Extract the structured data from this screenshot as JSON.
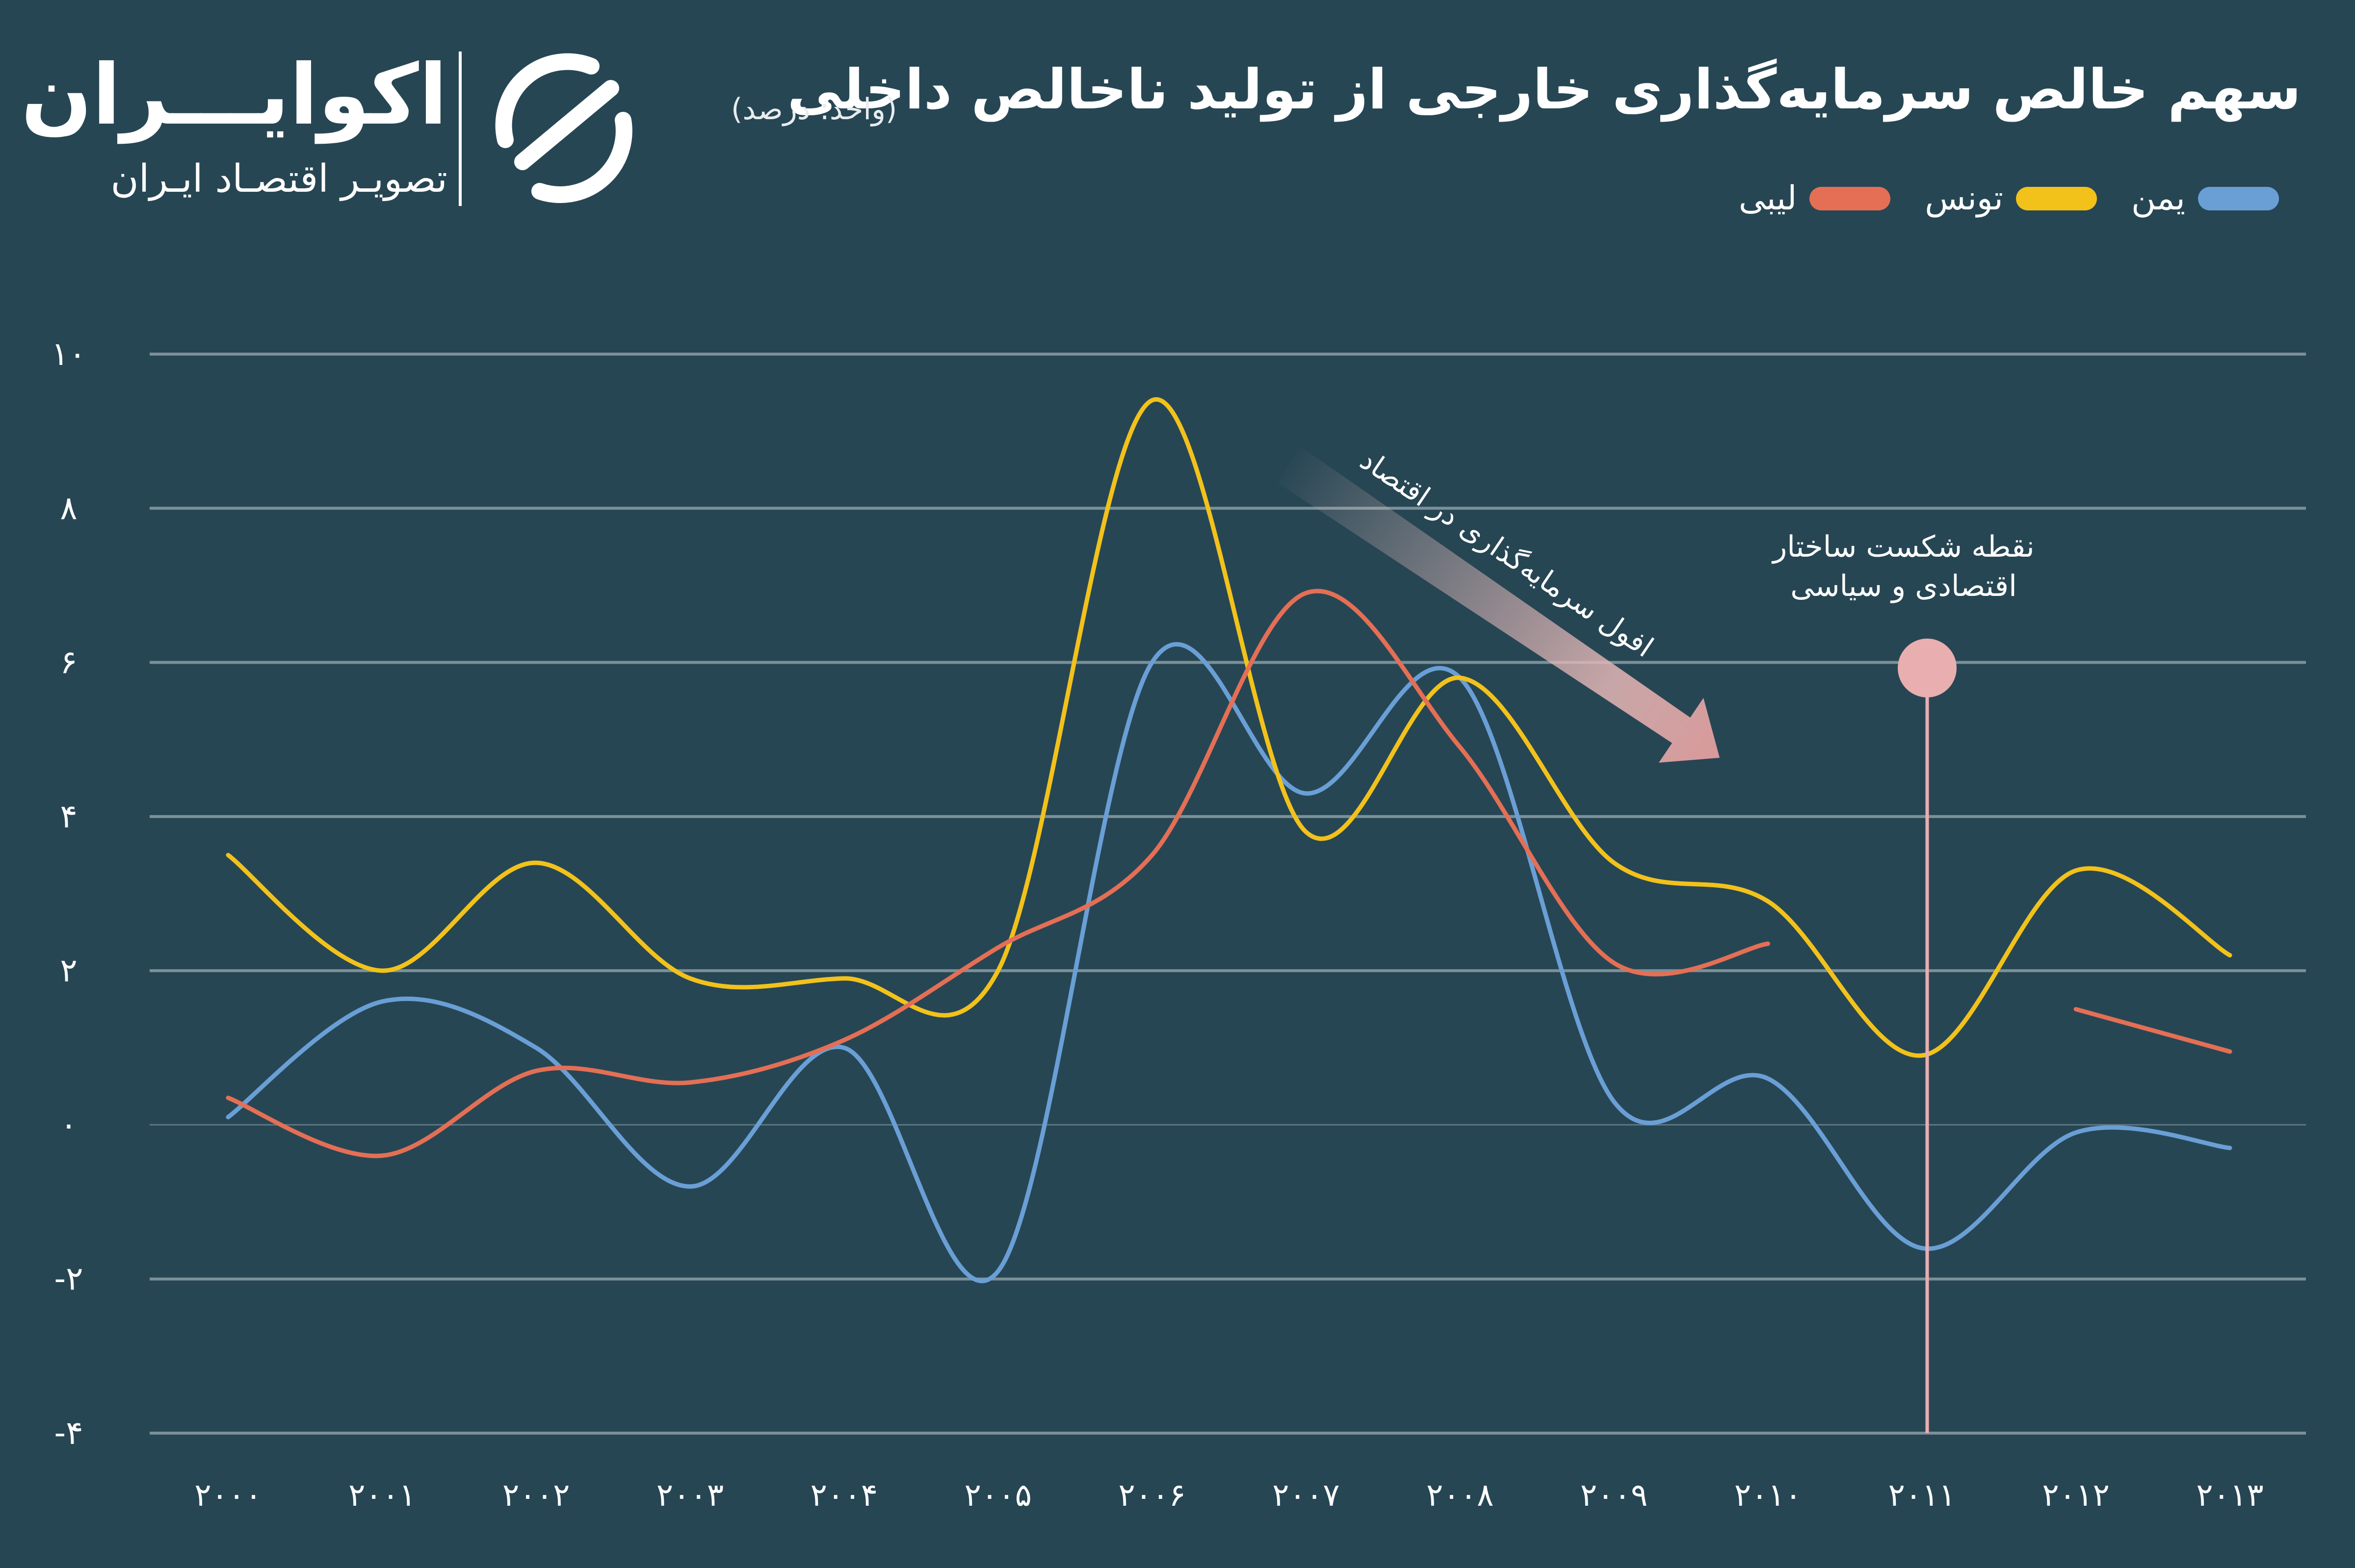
{
  "header": {
    "title": "سهم خالص سرمایه‌گذاری خارجی از تولید ناخالص داخلی",
    "unit": "(واحد: درصد)"
  },
  "logo": {
    "name": "اکوایـــران",
    "tagline": "تصویـر اقتصـاد ایـران"
  },
  "legend": [
    {
      "label": "یمن",
      "color": "#6a9fd6"
    },
    {
      "label": "تونس",
      "color": "#f2c21b"
    },
    {
      "label": "لیبی",
      "color": "#e46f55"
    }
  ],
  "chart_data": {
    "type": "line",
    "title": "سهم خالص سرمایه‌گذاری خارجی از تولید ناخالص داخلی",
    "unit": "(واحد: درصد)",
    "x": [
      "۲۰۰۰",
      "۲۰۰۱",
      "۲۰۰۲",
      "۲۰۰۳",
      "۲۰۰۴",
      "۲۰۰۵",
      "۲۰۰۶",
      "۲۰۰۷",
      "۲۰۰۸",
      "۲۰۰۹",
      "۲۰۱۰",
      "۲۰۱۱",
      "۲۰۱۲",
      "۲۰۱۳"
    ],
    "y_ticks": [
      "۱۰",
      "۸",
      "۶",
      "۴",
      "۲",
      "۰",
      "-۲",
      "-۴"
    ],
    "ylim": [
      -4,
      10
    ],
    "grid": true,
    "legend_position": "top-right",
    "series": [
      {
        "name": "یمن",
        "color": "#6a9fd6",
        "values": [
          0.1,
          1.6,
          1.0,
          -0.8,
          1.0,
          -1.9,
          6.0,
          4.3,
          5.8,
          0.3,
          0.6,
          -1.6,
          -0.1,
          -0.3
        ]
      },
      {
        "name": "تونس",
        "color": "#f2c21b",
        "values": [
          3.5,
          2.0,
          3.4,
          1.9,
          1.9,
          2.0,
          9.4,
          3.8,
          5.8,
          3.4,
          2.9,
          0.9,
          3.3,
          2.2
        ]
      },
      {
        "name": "لیبی",
        "color": "#e46f55",
        "values": [
          0.35,
          -0.4,
          0.7,
          0.55,
          1.1,
          2.3,
          3.5,
          6.9,
          4.9,
          2.1,
          2.35,
          null,
          1.5,
          0.95
        ]
      }
    ],
    "annotations": [
      {
        "text": "افول سرمایه‌گذاری در اقتصاد"
      },
      {
        "text_lines": [
          "نقطه شکست ساختار",
          "اقتصادی و سیاسی"
        ],
        "x": "۲۰۱۱"
      }
    ]
  }
}
